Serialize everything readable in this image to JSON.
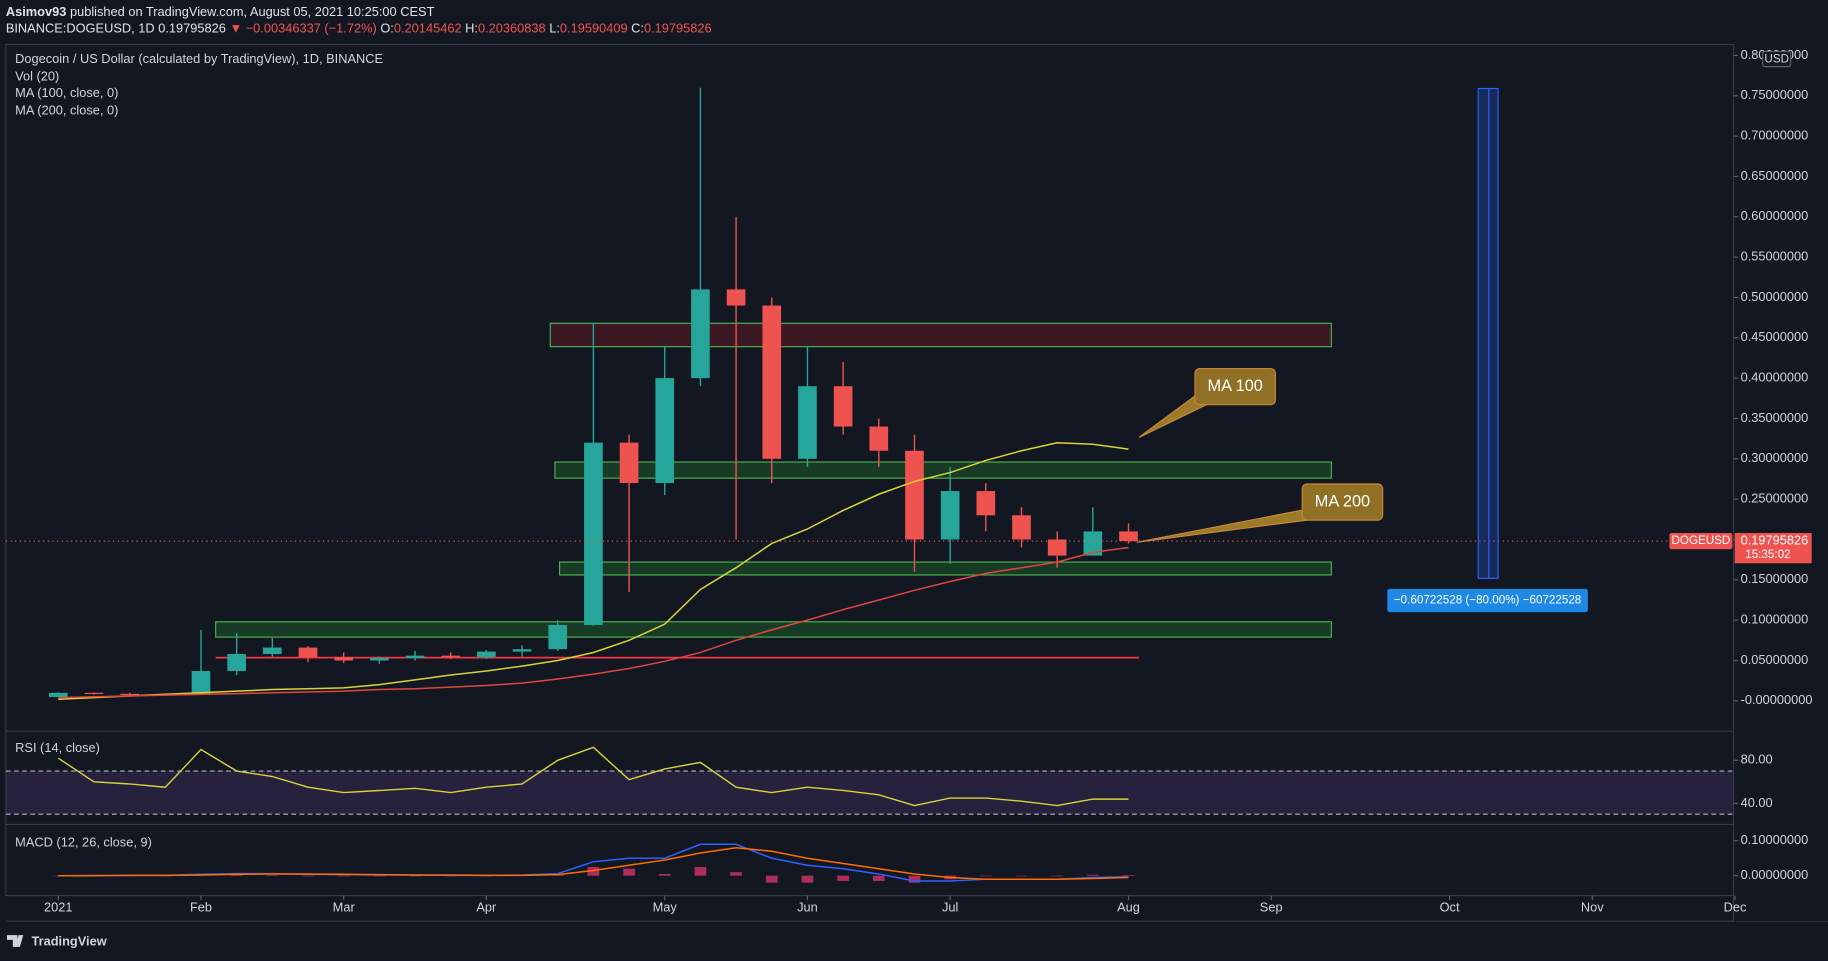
{
  "header": {
    "author": "Asimov93",
    "published": "published on TradingView.com, August 05, 2021 10:25:00 CEST",
    "symbol": "BINANCE:DOGEUSD, 1D",
    "last": "0.19795826",
    "change": "▼ −0.00346337 (−1.72%)",
    "ohlc": [
      {
        "label": "O:",
        "value": "0.20145462"
      },
      {
        "label": "H:",
        "value": "0.20360838"
      },
      {
        "label": "L:",
        "value": "0.19590409"
      },
      {
        "label": "C:",
        "value": "0.19795826"
      }
    ]
  },
  "footer": {
    "brand": "TradingView"
  },
  "chart_data": [
    {
      "type": "candlestick",
      "title": "Dogecoin / US Dollar (calculated by TradingView), 1D, BINANCE",
      "indicators": [
        "Vol (20)"
      ],
      "currency": "USD",
      "countdown": "15:35:02",
      "categories": [
        "2021",
        null,
        null,
        null,
        "Feb",
        null,
        null,
        null,
        "Mar",
        null,
        null,
        null,
        "Apr",
        null,
        null,
        null,
        null,
        "May",
        null,
        null,
        null,
        "Jun",
        null,
        null,
        null,
        "Jul",
        null,
        null,
        null,
        null,
        "Aug",
        null,
        null,
        null,
        "Sep",
        null,
        null,
        null,
        null,
        "Oct",
        null,
        null,
        null,
        "Nov",
        null,
        null,
        null,
        "Dec"
      ],
      "series": [
        {
          "name": "DOGEUSD",
          "up_color": "#26a69a",
          "down_color": "#ef5350",
          "open": [
            0.0047,
            0.0099,
            0.0086,
            0.008,
            0.0076,
            0.037,
            0.058,
            0.066,
            0.054,
            0.05,
            0.053,
            0.056,
            0.054,
            0.061,
            0.064,
            0.094,
            0.32,
            0.27,
            0.4,
            0.51,
            0.49,
            0.3,
            0.39,
            0.34,
            0.31,
            0.2,
            0.26,
            0.23,
            0.2,
            0.18,
            0.21,
            null,
            null,
            null,
            null,
            null,
            null,
            null,
            null,
            null,
            null,
            null,
            null,
            null,
            null,
            null,
            null,
            null
          ],
          "high": [
            0.0105,
            0.0105,
            0.0099,
            0.0087,
            0.0878,
            0.084,
            0.078,
            0.068,
            0.06,
            0.055,
            0.062,
            0.06,
            0.063,
            0.069,
            0.1,
            0.469,
            0.33,
            0.44,
            0.76,
            0.6,
            0.5,
            0.44,
            0.42,
            0.35,
            0.33,
            0.29,
            0.27,
            0.24,
            0.21,
            0.24,
            0.22,
            null,
            null,
            null,
            null,
            null,
            null,
            null,
            null,
            null,
            null,
            null,
            null,
            null,
            null,
            null,
            null,
            null
          ],
          "low": [
            0.0046,
            0.0075,
            0.0074,
            0.0071,
            0.0073,
            0.032,
            0.055,
            0.048,
            0.047,
            0.046,
            0.05,
            0.052,
            0.052,
            0.055,
            0.062,
            0.093,
            0.135,
            0.255,
            0.39,
            0.2,
            0.27,
            0.29,
            0.33,
            0.29,
            0.16,
            0.17,
            0.21,
            0.19,
            0.165,
            0.18,
            0.195,
            null,
            null,
            null,
            null,
            null,
            null,
            null,
            null,
            null,
            null,
            null,
            null,
            null,
            null,
            null,
            null,
            null
          ],
          "close": [
            0.0099,
            0.0086,
            0.008,
            0.0076,
            0.037,
            0.058,
            0.066,
            0.054,
            0.05,
            0.053,
            0.056,
            0.054,
            0.061,
            0.064,
            0.094,
            0.32,
            0.27,
            0.4,
            0.51,
            0.49,
            0.3,
            0.39,
            0.34,
            0.31,
            0.2,
            0.26,
            0.23,
            0.2,
            0.18,
            0.21,
            0.198,
            null,
            null,
            null,
            null,
            null,
            null,
            null,
            null,
            null,
            null,
            null,
            null,
            null,
            null,
            null,
            null,
            null
          ]
        },
        {
          "name": "MA (100, close, 0)",
          "color": "#d9d43a",
          "values": [
            0.002,
            0.004,
            0.006,
            0.008,
            0.01,
            0.012,
            0.014,
            0.015,
            0.016,
            0.02,
            0.026,
            0.032,
            0.037,
            0.043,
            0.05,
            0.06,
            0.075,
            0.095,
            0.138,
            0.165,
            0.195,
            0.213,
            0.236,
            0.256,
            0.272,
            0.283,
            0.298,
            0.31,
            0.32,
            0.318,
            0.312,
            null,
            null,
            null,
            null,
            null,
            null,
            null,
            null,
            null,
            null,
            null,
            null,
            null,
            null,
            null,
            null,
            null
          ]
        },
        {
          "name": "MA (200, close, 0)",
          "color": "#e0463e",
          "values": [
            0.004,
            0.005,
            0.006,
            0.007,
            0.008,
            0.009,
            0.01,
            0.011,
            0.012,
            0.014,
            0.015,
            0.017,
            0.019,
            0.022,
            0.027,
            0.033,
            0.04,
            0.049,
            0.06,
            0.075,
            0.088,
            0.1,
            0.113,
            0.125,
            0.137,
            0.148,
            0.158,
            0.165,
            0.172,
            0.184,
            0.19,
            null,
            null,
            null,
            null,
            null,
            null,
            null,
            null,
            null,
            null,
            null,
            null,
            null,
            null,
            null,
            null,
            null
          ]
        }
      ],
      "last_price": 0.19795826,
      "ylim": [
        -0.0376,
        0.8136
      ],
      "yticks": [
        {
          "value": 0,
          "label": "-0.00000000"
        },
        {
          "value": 0.05,
          "label": "0.05000000"
        },
        {
          "value": 0.1,
          "label": "0.10000000"
        },
        {
          "value": 0.15,
          "label": "0.15000000"
        },
        {
          "value": 0.2,
          "label": "0.20000000"
        },
        {
          "value": 0.25,
          "label": "0.25000000"
        },
        {
          "value": 0.3,
          "label": "0.30000000"
        },
        {
          "value": 0.35,
          "label": "0.35000000"
        },
        {
          "value": 0.4,
          "label": "0.40000000"
        },
        {
          "value": 0.45,
          "label": "0.45000000"
        },
        {
          "value": 0.5,
          "label": "0.50000000"
        },
        {
          "value": 0.55,
          "label": "0.55000000"
        },
        {
          "value": 0.6,
          "label": "0.60000000"
        },
        {
          "value": 0.65,
          "label": "0.65000000"
        },
        {
          "value": 0.7,
          "label": "0.70000000"
        },
        {
          "value": 0.75,
          "label": "0.75000000"
        },
        {
          "value": 0.8,
          "label": "0.80000000"
        }
      ],
      "zones": [
        {
          "low": 0.439,
          "high": 0.468,
          "color": "#5c1a22"
        },
        {
          "low": 0.276,
          "high": 0.296,
          "color": "#1e5a2a"
        },
        {
          "low": 0.156,
          "high": 0.172,
          "color": "#1e5a2a"
        },
        {
          "low": 0.079,
          "high": 0.098,
          "color": "#1e5a2a"
        }
      ],
      "support_line": {
        "value": 0.0535,
        "color": "#f23645"
      },
      "measure": {
        "from": 0.7590316,
        "to": 0.15180632,
        "label": "−0.60722528 (−80.00%) −60722528"
      },
      "callouts": [
        "MA 100",
        "MA 200"
      ]
    },
    {
      "type": "line",
      "title": "RSI (14, close)",
      "color": "#d9d43a",
      "values": [
        82,
        60,
        58,
        55,
        90,
        70,
        65,
        55,
        50,
        52,
        54,
        50,
        55,
        58,
        80,
        92,
        62,
        72,
        78,
        55,
        50,
        55,
        52,
        48,
        38,
        45,
        45,
        42,
        38,
        44,
        44
      ],
      "bands": [
        30,
        70
      ],
      "ylim": [
        20.5,
        103.8
      ],
      "yticks": [
        {
          "value": 40,
          "label": "40.00"
        },
        {
          "value": 80,
          "label": "80.00"
        }
      ]
    },
    {
      "type": "macd",
      "title": "MACD (12, 26, close, 9)",
      "series": [
        {
          "color": "#2962ff",
          "values": [
            0,
            0.001,
            0.001,
            0.001,
            0.004,
            0.006,
            0.006,
            0.004,
            0.003,
            0.002,
            0.002,
            0.001,
            0.001,
            0.002,
            0.006,
            0.04,
            0.05,
            0.05,
            0.09,
            0.09,
            0.05,
            0.03,
            0.02,
            0.005,
            -0.015,
            -0.015,
            -0.01,
            -0.01,
            -0.01,
            -0.005,
            -0.003
          ]
        },
        {
          "color": "#ff6d00",
          "values": [
            0,
            0,
            0.001,
            0.001,
            0.002,
            0.004,
            0.005,
            0.005,
            0.004,
            0.003,
            0.002,
            0.002,
            0.001,
            0.001,
            0.003,
            0.015,
            0.03,
            0.045,
            0.065,
            0.08,
            0.07,
            0.05,
            0.035,
            0.02,
            0.005,
            -0.005,
            -0.01,
            -0.01,
            -0.01,
            -0.008,
            -0.005
          ]
        }
      ],
      "histogram": {
        "color": "#d6336c",
        "values": [
          0,
          0.001,
          0,
          0,
          0.002,
          0.002,
          0.001,
          -0.001,
          -0.001,
          -0.001,
          0,
          -0.001,
          0,
          0.001,
          0.003,
          0.025,
          0.02,
          0.005,
          0.025,
          0.01,
          -0.02,
          -0.02,
          -0.015,
          -0.015,
          -0.02,
          -0.01,
          0,
          0,
          0,
          0.003,
          0.002
        ]
      },
      "ylim": [
        -0.0567,
        0.13
      ],
      "yticks": [
        {
          "value": 0,
          "label": "0.00000000"
        },
        {
          "value": 0.1,
          "label": "0.10000000"
        }
      ]
    }
  ]
}
